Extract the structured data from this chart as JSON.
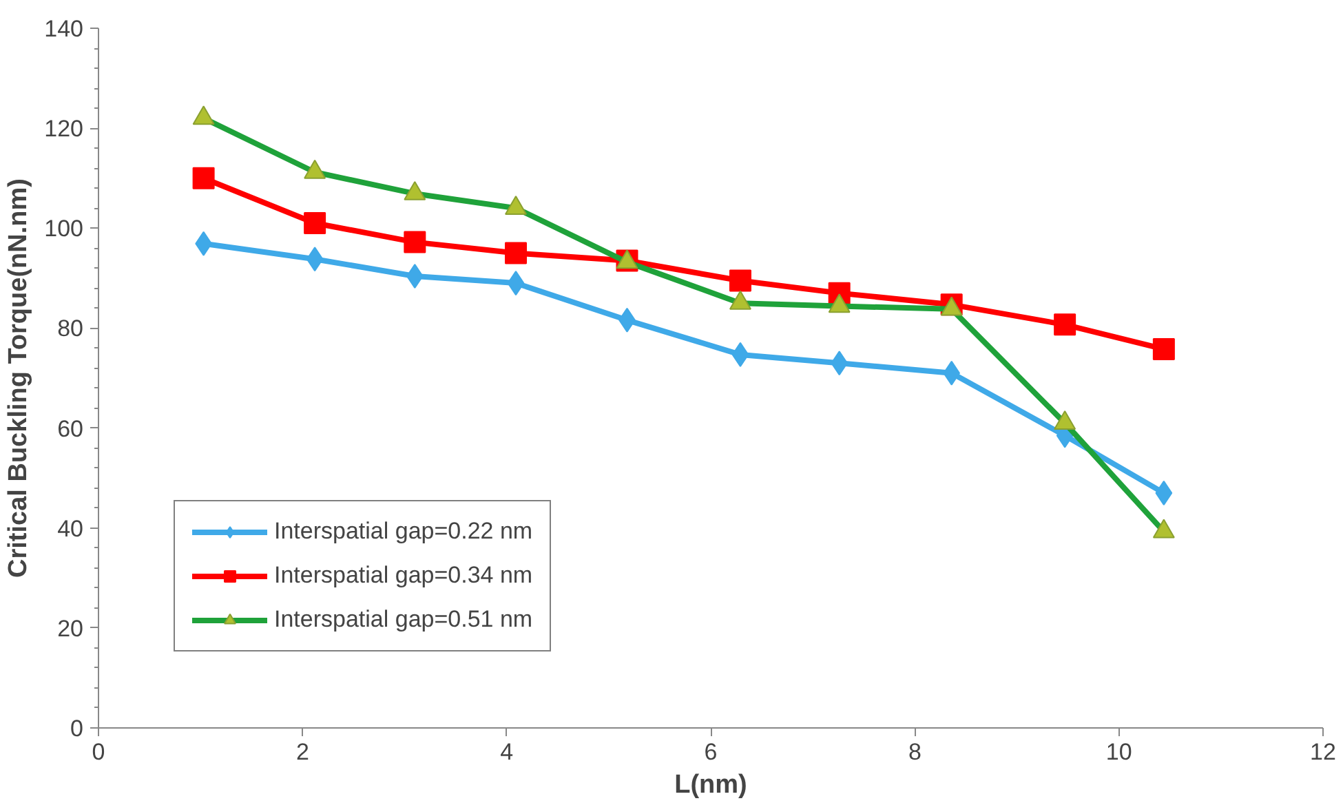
{
  "chart_data": {
    "type": "line",
    "xlabel": "L(nm)",
    "ylabel": "Critical Buckling Torque(nN.nm)",
    "x": [
      1.03,
      2.12,
      3.1,
      4.09,
      5.18,
      6.29,
      7.26,
      8.36,
      9.47,
      10.44
    ],
    "series": [
      {
        "name": "Interspatial gap=0.22 nm",
        "color": "#3fa9e8",
        "marker": "diamond",
        "values": [
          96.9,
          93.8,
          90.4,
          89.0,
          81.6,
          74.7,
          73.0,
          71.0,
          58.5,
          47.0
        ]
      },
      {
        "name": "Interspatial gap=0.34 nm",
        "color": "#ff0000",
        "marker": "square",
        "values": [
          110,
          101,
          97.2,
          95,
          93.5,
          89.5,
          87,
          84.7,
          80.7,
          75.8
        ]
      },
      {
        "name": "Interspatial gap=0.51 nm",
        "color": "#1fa23a",
        "marker": "triangle",
        "values": [
          122,
          111.2,
          106.9,
          104,
          93.2,
          85,
          84.4,
          83.8,
          61,
          39.3
        ]
      }
    ],
    "xlim": [
      0,
      12
    ],
    "xticks": [
      0,
      2,
      4,
      6,
      8,
      10,
      12
    ],
    "ylim": [
      0,
      140
    ],
    "yticks": [
      0,
      20,
      40,
      60,
      80,
      100,
      120,
      140
    ],
    "grid": false,
    "legend": "bottom left",
    "line_style": "solid"
  }
}
